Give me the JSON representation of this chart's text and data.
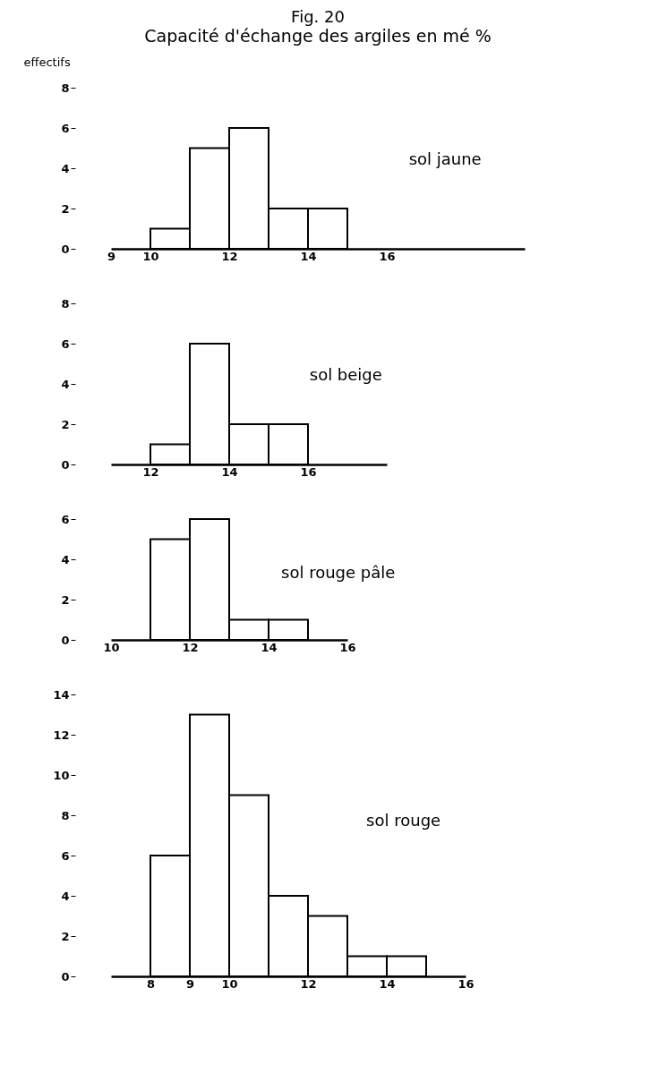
{
  "chart_data": [
    {
      "type": "histogram",
      "title": "Fig. 20",
      "subtitle": "Capacité d'échange des argiles en mé %",
      "ylabel": "effectifs",
      "annotations": [
        "sol jaune"
      ],
      "bins": [
        10,
        11,
        12,
        13,
        14,
        15
      ],
      "values": [
        1,
        5,
        6,
        2,
        2
      ],
      "color": "#ffffff",
      "xlim": [
        9,
        19.5
      ],
      "xticks": [
        9,
        10,
        12,
        14,
        16
      ],
      "ylim": [
        0,
        8
      ],
      "yticks": [
        0,
        2,
        4,
        6,
        8
      ]
    },
    {
      "type": "histogram",
      "annotations": [
        "sol beige"
      ],
      "bins": [
        12,
        13,
        14,
        15,
        16
      ],
      "values": [
        1,
        6,
        2,
        2
      ],
      "color": "#ffffff",
      "xlim": [
        11,
        18
      ],
      "xticks": [
        12,
        14,
        16
      ],
      "ylim": [
        0,
        8
      ],
      "yticks": [
        0,
        2,
        4,
        6,
        8
      ]
    },
    {
      "type": "histogram",
      "annotations": [
        "sol rouge pâle"
      ],
      "bins": [
        11,
        12,
        13,
        14,
        15
      ],
      "values": [
        5,
        6,
        1,
        1
      ],
      "color": "#ffffff",
      "xlim": [
        10,
        16
      ],
      "xticks": [
        10,
        12,
        14,
        16
      ],
      "ylim": [
        0,
        6
      ],
      "yticks": [
        0,
        2,
        4,
        6
      ]
    },
    {
      "type": "histogram",
      "annotations": [
        "sol rouge"
      ],
      "bins": [
        8,
        9,
        10,
        11,
        12,
        13,
        14,
        15
      ],
      "values": [
        6,
        13,
        9,
        4,
        3,
        1,
        1
      ],
      "color": "#ffffff",
      "xlim": [
        7,
        16
      ],
      "xticks": [
        8,
        9,
        10,
        12,
        14,
        16
      ],
      "ylim": [
        0,
        14
      ],
      "yticks": [
        0,
        2,
        4,
        6,
        8,
        10,
        12,
        14
      ]
    }
  ]
}
